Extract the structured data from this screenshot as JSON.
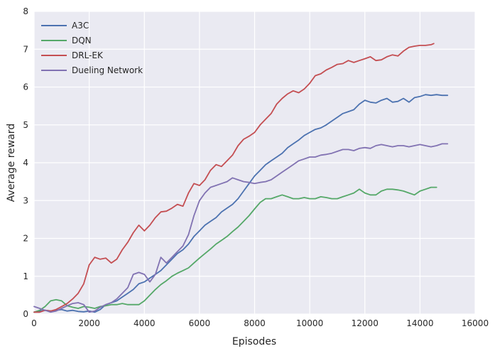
{
  "chart_data": {
    "type": "line",
    "title": "",
    "xlabel": "Episodes",
    "ylabel": "Average reward",
    "xlim": [
      0,
      16000
    ],
    "ylim": [
      0,
      8
    ],
    "xticks": [
      0,
      2000,
      4000,
      6000,
      8000,
      10000,
      12000,
      14000,
      16000
    ],
    "yticks": [
      0,
      1,
      2,
      3,
      4,
      5,
      6,
      7,
      8
    ],
    "grid": true,
    "legend_position": "top-left",
    "series": [
      {
        "name": "A3C",
        "color": "#4c72b0",
        "x": [
          0,
          200,
          400,
          600,
          800,
          1000,
          1200,
          1400,
          1600,
          1800,
          2000,
          2200,
          2400,
          2600,
          2800,
          3000,
          3200,
          3400,
          3600,
          3800,
          4000,
          4200,
          4400,
          4600,
          4800,
          5000,
          5200,
          5400,
          5600,
          5800,
          6000,
          6200,
          6400,
          6600,
          6800,
          7000,
          7200,
          7400,
          7600,
          7800,
          8000,
          8200,
          8400,
          8600,
          8800,
          9000,
          9200,
          9400,
          9600,
          9800,
          10000,
          10200,
          10400,
          10600,
          10800,
          11000,
          11200,
          11400,
          11600,
          11800,
          12000,
          12200,
          12400,
          12600,
          12800,
          13000,
          13200,
          13400,
          13600,
          13800,
          14000,
          14200,
          14400,
          14600,
          14800,
          15000
        ],
        "y": [
          0.05,
          0.08,
          0.1,
          0.08,
          0.1,
          0.12,
          0.08,
          0.1,
          0.07,
          0.06,
          0.08,
          0.05,
          0.12,
          0.25,
          0.3,
          0.35,
          0.45,
          0.55,
          0.65,
          0.8,
          0.85,
          0.95,
          1.05,
          1.15,
          1.3,
          1.45,
          1.6,
          1.7,
          1.85,
          2.05,
          2.2,
          2.35,
          2.45,
          2.55,
          2.7,
          2.8,
          2.9,
          3.05,
          3.25,
          3.45,
          3.65,
          3.8,
          3.95,
          4.05,
          4.15,
          4.25,
          4.4,
          4.5,
          4.6,
          4.72,
          4.8,
          4.88,
          4.92,
          5.0,
          5.1,
          5.2,
          5.3,
          5.35,
          5.4,
          5.55,
          5.65,
          5.6,
          5.58,
          5.65,
          5.7,
          5.6,
          5.62,
          5.7,
          5.6,
          5.72,
          5.75,
          5.8,
          5.78,
          5.8,
          5.78,
          5.78
        ]
      },
      {
        "name": "DQN",
        "color": "#55a868",
        "x": [
          0,
          200,
          400,
          600,
          800,
          1000,
          1200,
          1400,
          1600,
          1800,
          2000,
          2200,
          2400,
          2600,
          2800,
          3000,
          3200,
          3400,
          3600,
          3800,
          4000,
          4200,
          4400,
          4600,
          4800,
          5000,
          5200,
          5400,
          5600,
          5800,
          6000,
          6200,
          6400,
          6600,
          6800,
          7000,
          7200,
          7400,
          7600,
          7800,
          8000,
          8200,
          8400,
          8600,
          8800,
          9000,
          9200,
          9400,
          9600,
          9800,
          10000,
          10200,
          10400,
          10600,
          10800,
          11000,
          11200,
          11400,
          11600,
          11800,
          12000,
          12200,
          12400,
          12600,
          12800,
          13000,
          13200,
          13400,
          13600,
          13800,
          14000,
          14200,
          14400,
          14600
        ],
        "y": [
          0.05,
          0.1,
          0.2,
          0.35,
          0.38,
          0.35,
          0.22,
          0.18,
          0.15,
          0.2,
          0.18,
          0.15,
          0.2,
          0.22,
          0.25,
          0.25,
          0.28,
          0.25,
          0.25,
          0.25,
          0.35,
          0.5,
          0.65,
          0.78,
          0.88,
          1.0,
          1.08,
          1.15,
          1.22,
          1.35,
          1.48,
          1.6,
          1.72,
          1.85,
          1.95,
          2.05,
          2.18,
          2.3,
          2.45,
          2.6,
          2.78,
          2.95,
          3.05,
          3.05,
          3.1,
          3.15,
          3.1,
          3.05,
          3.05,
          3.08,
          3.05,
          3.05,
          3.1,
          3.08,
          3.05,
          3.05,
          3.1,
          3.15,
          3.2,
          3.3,
          3.2,
          3.15,
          3.15,
          3.25,
          3.3,
          3.3,
          3.28,
          3.25,
          3.2,
          3.15,
          3.25,
          3.3,
          3.35,
          3.35
        ]
      },
      {
        "name": "DRL-EK",
        "color": "#c44e52",
        "x": [
          0,
          200,
          400,
          600,
          800,
          1000,
          1200,
          1400,
          1600,
          1800,
          2000,
          2200,
          2400,
          2600,
          2800,
          3000,
          3200,
          3400,
          3600,
          3800,
          4000,
          4200,
          4400,
          4600,
          4800,
          5000,
          5200,
          5400,
          5600,
          5800,
          6000,
          6200,
          6400,
          6600,
          6800,
          7000,
          7200,
          7400,
          7600,
          7800,
          8000,
          8200,
          8400,
          8600,
          8800,
          9000,
          9200,
          9400,
          9600,
          9800,
          10000,
          10200,
          10400,
          10600,
          10800,
          11000,
          11200,
          11400,
          11600,
          11800,
          12000,
          12200,
          12400,
          12600,
          12800,
          13000,
          13200,
          13400,
          13600,
          13800,
          14000,
          14200,
          14400,
          14500
        ],
        "y": [
          0.05,
          0.05,
          0.1,
          0.08,
          0.12,
          0.2,
          0.28,
          0.4,
          0.55,
          0.8,
          1.3,
          1.5,
          1.45,
          1.48,
          1.35,
          1.45,
          1.7,
          1.9,
          2.15,
          2.35,
          2.2,
          2.35,
          2.55,
          2.7,
          2.72,
          2.8,
          2.9,
          2.85,
          3.2,
          3.45,
          3.4,
          3.55,
          3.8,
          3.95,
          3.9,
          4.05,
          4.2,
          4.45,
          4.62,
          4.7,
          4.8,
          5.0,
          5.15,
          5.3,
          5.55,
          5.7,
          5.82,
          5.9,
          5.85,
          5.95,
          6.1,
          6.3,
          6.35,
          6.45,
          6.52,
          6.6,
          6.62,
          6.7,
          6.65,
          6.7,
          6.75,
          6.8,
          6.7,
          6.72,
          6.8,
          6.85,
          6.82,
          6.95,
          7.05,
          7.08,
          7.1,
          7.1,
          7.12,
          7.15
        ]
      },
      {
        "name": "Dueling Network",
        "color": "#8172b2",
        "x": [
          0,
          200,
          400,
          600,
          800,
          1000,
          1200,
          1400,
          1600,
          1800,
          2000,
          2200,
          2400,
          2600,
          2800,
          3000,
          3200,
          3400,
          3600,
          3800,
          4000,
          4200,
          4400,
          4600,
          4800,
          5000,
          5200,
          5400,
          5600,
          5800,
          6000,
          6200,
          6400,
          6600,
          6800,
          7000,
          7200,
          7400,
          7600,
          7800,
          8000,
          8200,
          8400,
          8600,
          8800,
          9000,
          9200,
          9400,
          9600,
          9800,
          10000,
          10200,
          10400,
          10600,
          10800,
          11000,
          11200,
          11400,
          11600,
          11800,
          12000,
          12200,
          12400,
          12600,
          12800,
          13000,
          13200,
          13400,
          13600,
          13800,
          14000,
          14200,
          14400,
          14600,
          14800,
          15000
        ],
        "y": [
          0.2,
          0.15,
          0.1,
          0.05,
          0.08,
          0.15,
          0.22,
          0.28,
          0.3,
          0.25,
          0.05,
          0.08,
          0.18,
          0.25,
          0.3,
          0.4,
          0.55,
          0.7,
          1.05,
          1.1,
          1.05,
          0.85,
          1.05,
          1.5,
          1.35,
          1.5,
          1.65,
          1.8,
          2.1,
          2.6,
          3.0,
          3.2,
          3.35,
          3.4,
          3.45,
          3.5,
          3.6,
          3.55,
          3.5,
          3.48,
          3.45,
          3.48,
          3.5,
          3.55,
          3.65,
          3.75,
          3.85,
          3.95,
          4.05,
          4.1,
          4.15,
          4.15,
          4.2,
          4.22,
          4.25,
          4.3,
          4.35,
          4.35,
          4.32,
          4.38,
          4.4,
          4.38,
          4.45,
          4.48,
          4.45,
          4.42,
          4.45,
          4.45,
          4.42,
          4.45,
          4.48,
          4.45,
          4.42,
          4.45,
          4.5,
          4.5
        ]
      }
    ]
  }
}
